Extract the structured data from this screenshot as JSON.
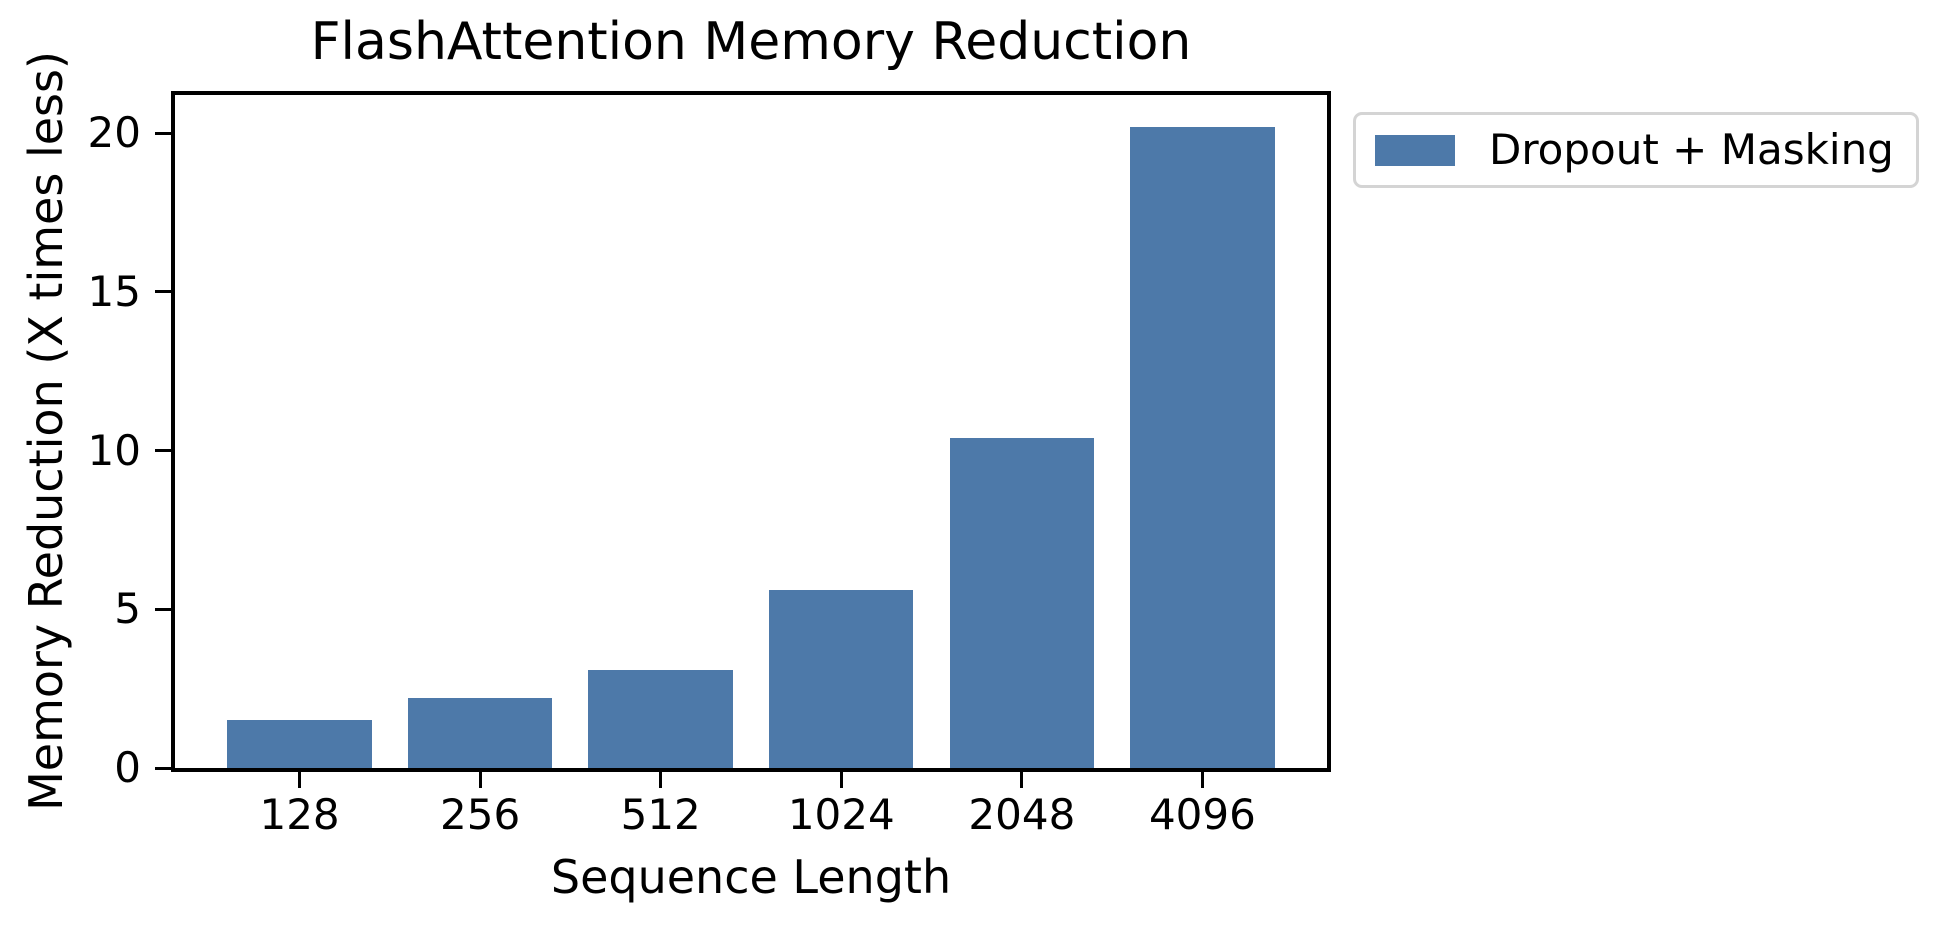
{
  "chart_data": {
    "type": "bar",
    "title": "FlashAttention Memory Reduction",
    "xlabel": "Sequence Length",
    "ylabel": "Memory Reduction (X times less)",
    "categories": [
      "128",
      "256",
      "512",
      "1024",
      "2048",
      "4096"
    ],
    "series": [
      {
        "name": "Dropout + Masking",
        "values": [
          1.5,
          2.2,
          3.1,
          5.6,
          10.4,
          20.2
        ],
        "color": "#4D79A9"
      }
    ],
    "yticks": [
      0,
      5,
      10,
      15,
      20
    ],
    "ylim": [
      0,
      21.2
    ],
    "grid": false,
    "legend": {
      "label": "Dropout + Masking",
      "position": "outside-upper-right",
      "swatch_color": "#4D79A9"
    },
    "colors": {
      "bar": "#4D79A9",
      "spine": "#000000",
      "text": "#000000",
      "legend_border": "#d4d4d4",
      "background": "#ffffff"
    }
  }
}
